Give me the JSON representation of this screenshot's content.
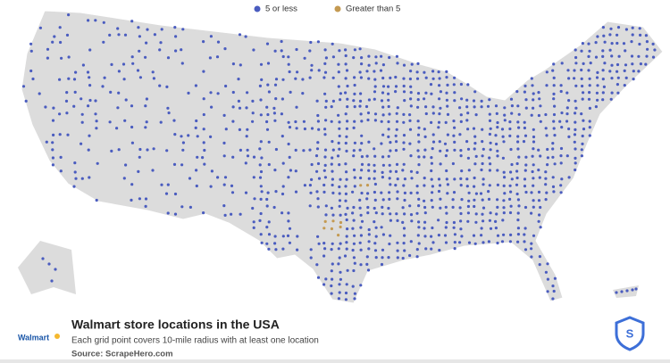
{
  "legend": [
    {
      "name": "5 or less",
      "color": "#4a5cbf"
    },
    {
      "name": "Greater than 5",
      "color": "#c49a52"
    }
  ],
  "title": "Walmart store locations in the USA",
  "subtitle": "Each grid point covers 10-mile radius with at least one location",
  "source": "Source: ScrapeHero.com",
  "logo": "Walmart"
}
